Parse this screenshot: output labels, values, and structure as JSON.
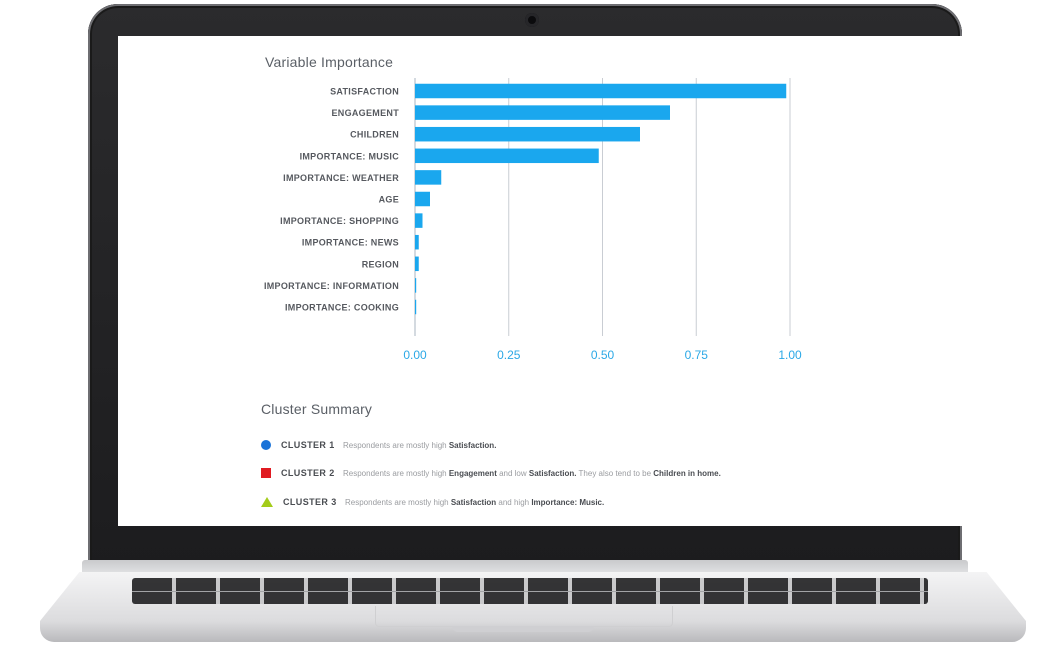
{
  "chart_data": {
    "type": "bar",
    "orientation": "horizontal",
    "title": "Variable Importance",
    "categories": [
      "SATISFACTION",
      "ENGAGEMENT",
      "CHILDREN",
      "IMPORTANCE: MUSIC",
      "IMPORTANCE: WEATHER",
      "AGE",
      "IMPORTANCE: SHOPPING",
      "IMPORTANCE: NEWS",
      "REGION",
      "IMPORTANCE: INFORMATION",
      "IMPORTANCE: COOKING"
    ],
    "values": [
      0.99,
      0.68,
      0.6,
      0.49,
      0.07,
      0.04,
      0.02,
      0.01,
      0.01,
      0.003,
      0.002
    ],
    "xlim": [
      0,
      1
    ],
    "xticks": [
      "0.00",
      "0.25",
      "0.50",
      "0.75",
      "1.00"
    ],
    "grid": "vertical",
    "bar_color": "#1aa7ee"
  },
  "summary": {
    "title": "Cluster Summary",
    "clusters": [
      {
        "name": "CLUSTER 1",
        "marker": "circle",
        "color": "#1a73d8",
        "parts": [
          {
            "text": "Respondents are mostly high ",
            "bold": false
          },
          {
            "text": "Satisfaction.",
            "bold": true
          }
        ]
      },
      {
        "name": "CLUSTER 2",
        "marker": "square",
        "color": "#e01b22",
        "parts": [
          {
            "text": "Respondents are mostly high ",
            "bold": false
          },
          {
            "text": "Engagement",
            "bold": true
          },
          {
            "text": " and low ",
            "bold": false
          },
          {
            "text": "Satisfaction.",
            "bold": true
          },
          {
            "text": " They also tend to be ",
            "bold": false
          },
          {
            "text": "Children in home.",
            "bold": true
          }
        ]
      },
      {
        "name": "CLUSTER 3",
        "marker": "triangle",
        "color": "#a4cc1a",
        "parts": [
          {
            "text": "Respondents are mostly high ",
            "bold": false
          },
          {
            "text": "Satisfaction",
            "bold": true
          },
          {
            "text": " and high ",
            "bold": false
          },
          {
            "text": "Importance: Music.",
            "bold": true
          }
        ]
      }
    ]
  }
}
